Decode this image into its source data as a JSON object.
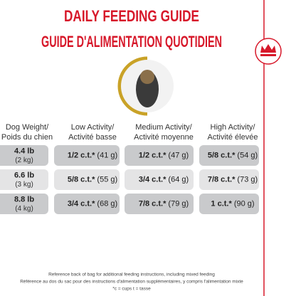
{
  "header": {
    "title": "DAILY FEEDING GUIDE",
    "subtitle": "GUIDE D'ALIMENTATION QUOTIDIEN"
  },
  "table": {
    "columns": [
      {
        "line1": "Dog Weight/",
        "line2": "Poids du chien"
      },
      {
        "line1": "Low Activity/",
        "line2": "Activité basse"
      },
      {
        "line1": "Medium Activity/",
        "line2": "Activité moyenne"
      },
      {
        "line1": "High Activity/",
        "line2": "Activité élevée"
      }
    ],
    "rows": [
      {
        "weight": {
          "lb": "4.4 lb",
          "kg": "(2 kg)"
        },
        "cells": [
          {
            "amount": "1/2 c.t.*",
            "grams": "(41 g)"
          },
          {
            "amount": "1/2 c.t.*",
            "grams": "(47 g)"
          },
          {
            "amount": "5/8 c.t.*",
            "grams": "(54 g)"
          }
        ]
      },
      {
        "weight": {
          "lb": "6.6 lb",
          "kg": "(3 kg)"
        },
        "cells": [
          {
            "amount": "5/8 c.t.*",
            "grams": "(55 g)"
          },
          {
            "amount": "3/4 c.t.*",
            "grams": "(64 g)"
          },
          {
            "amount": "7/8 c.t.*",
            "grams": "(73 g)"
          }
        ]
      },
      {
        "weight": {
          "lb": "8.8 lb",
          "kg": "(4 kg)"
        },
        "cells": [
          {
            "amount": "3/4 c.t.*",
            "grams": "(68 g)"
          },
          {
            "amount": "7/8 c.t.*",
            "grams": "(79 g)"
          },
          {
            "amount": "1 c.t.*",
            "grams": "(90 g)"
          }
        ]
      }
    ]
  },
  "footer": {
    "lines": [
      "Reference back of bag for additional feeding instructions, including mixed feeding",
      "Référence au dos du sac pour des instructions d'alimentation supplémentaires, y compris l'alimentation mixte",
      "*c = cups t = tasse"
    ]
  }
}
